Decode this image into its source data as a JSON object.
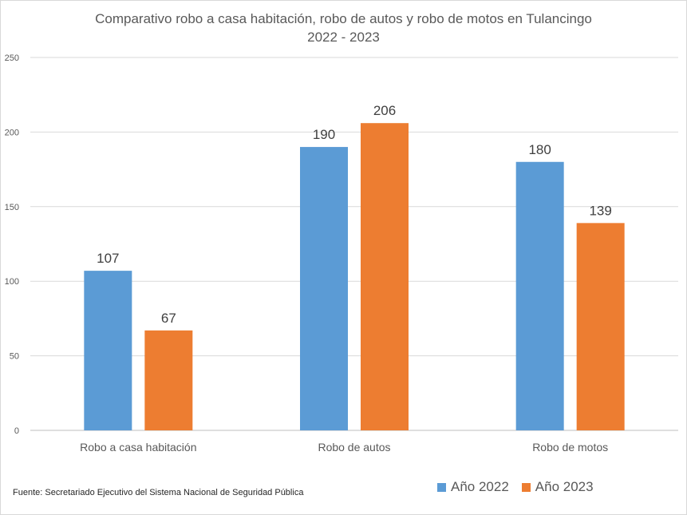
{
  "chart_data": {
    "type": "bar",
    "title": "Comparativo robo a casa habitación, robo de autos y robo de motos en Tulancingo",
    "subtitle": "2022 - 2023",
    "categories": [
      "Robo a casa habitación",
      "Robo de autos",
      "Robo de motos"
    ],
    "series": [
      {
        "name": "Año 2022",
        "color": "#5b9bd5",
        "values": [
          107,
          190,
          180
        ]
      },
      {
        "name": "Año 2023",
        "color": "#ed7d31",
        "values": [
          67,
          206,
          139
        ]
      }
    ],
    "ylim": [
      0,
      250
    ],
    "yticks": [
      0,
      50,
      100,
      150,
      200,
      250
    ],
    "xlabel": "",
    "ylabel": "",
    "grid": true,
    "legend": "bottom-right",
    "data_labels": true
  },
  "footnote": "Fuente:  Secretariado Ejecutivo del Sistema Nacional de Seguridad Pública"
}
